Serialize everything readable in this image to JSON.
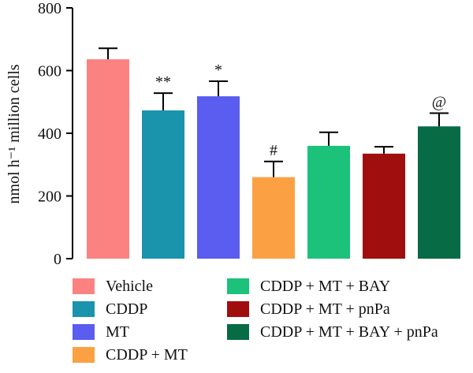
{
  "chart_data": {
    "type": "bar",
    "ylabel": "nmol h⁻¹ million cells",
    "ylim": [
      0,
      800
    ],
    "yticks": [
      0,
      200,
      400,
      600,
      800
    ],
    "grid": false,
    "legend_position": "bottom",
    "categories": [
      "Vehicle",
      "CDDP",
      "MT",
      "CDDP + MT",
      "CDDP + MT + BAY",
      "CDDP + MT + pnPa",
      "CDDP + MT + BAY + pnPa"
    ],
    "values": [
      636,
      473,
      518,
      260,
      360,
      335,
      422
    ],
    "errors": [
      35,
      55,
      48,
      50,
      43,
      22,
      42
    ],
    "colors": [
      "#fc8181",
      "#1a93ad",
      "#5b5cf0",
      "#fba144",
      "#1cc27a",
      "#a10e0e",
      "#076b45"
    ],
    "annotations": [
      "",
      "**",
      "*",
      "#",
      "",
      "",
      "@"
    ]
  }
}
